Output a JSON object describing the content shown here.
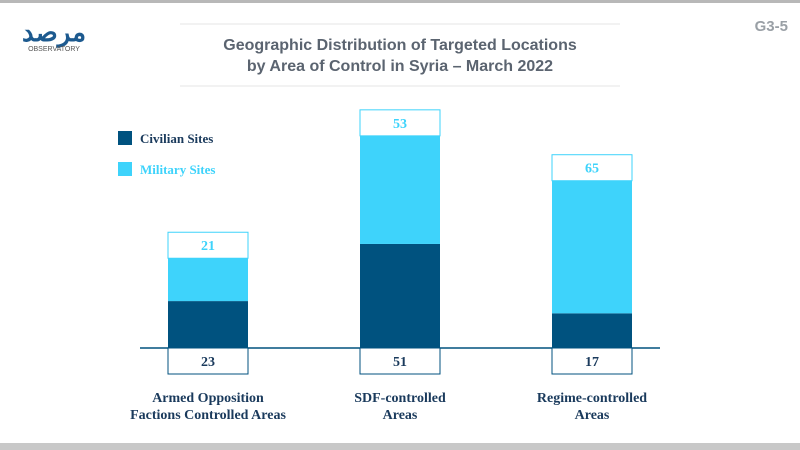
{
  "chart_data": {
    "type": "stacked-bar",
    "title": "Geographic Distribution of Targeted Locations\nby Area of Control in Syria – March 2022",
    "figure_code": "G3-5",
    "logo": {
      "arabic": "مرصد",
      "latin": "OBSERVATORY"
    },
    "categories": [
      "Armed Opposition\nFactions Controlled Areas",
      "SDF-controlled\nAreas",
      "Regime-controlled\nAreas"
    ],
    "series": [
      {
        "name": "Civilian Sites",
        "color": "#00527f",
        "values": [
          23,
          51,
          17
        ]
      },
      {
        "name": "Military Sites",
        "color": "#3ed3fb",
        "values": [
          21,
          53,
          65
        ]
      }
    ]
  }
}
